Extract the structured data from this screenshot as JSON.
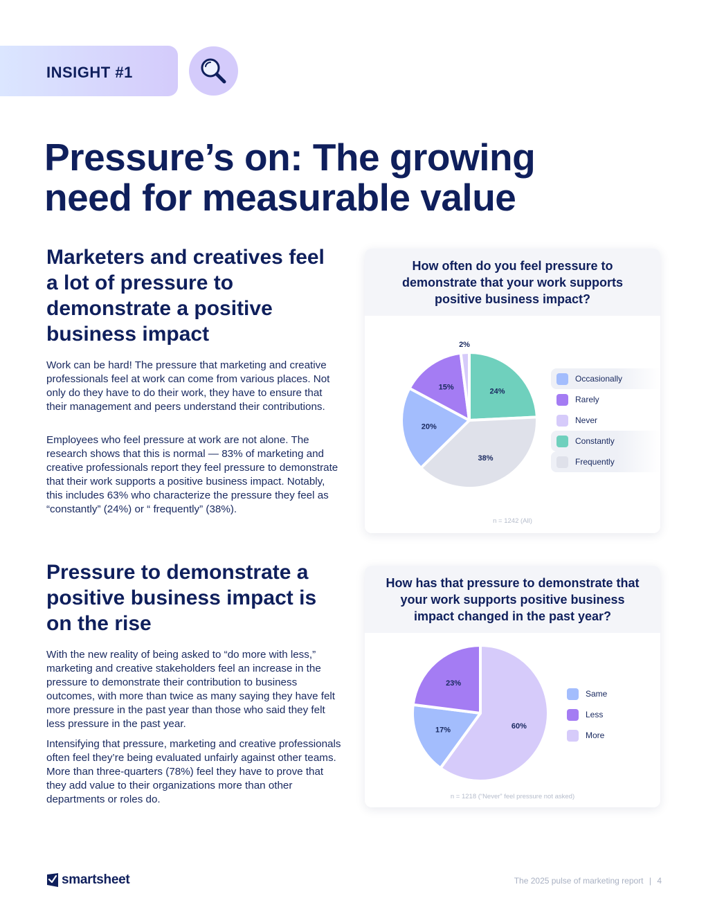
{
  "header": {
    "insight_label": "INSIGHT #1",
    "icon": "magnifier-icon"
  },
  "title": "Pressure’s on: The growing need for measurable value",
  "section1": {
    "heading": "Marketers and creatives feel a lot of pressure to demonstrate a positive business impact",
    "para1": "Work can be hard! The pressure that marketing and creative professionals feel at work can come from various places. Not only do they have to do their work, they have to ensure that their management and peers understand their contributions.",
    "para2": "Employees who feel pressure at work are not alone. The research shows that this is normal — 83% of marketing and creative professionals report they feel pressure to demonstrate that their work supports a positive business impact. Notably, this includes 63% who characterize the pressure they feel as “constantly” (24%) or “ frequently” (38%)."
  },
  "section2": {
    "heading": "Pressure to demonstrate a positive business impact is on the rise",
    "para1": "With the new reality of being asked to “do more with less,” marketing and creative stakeholders feel an increase in the pressure to demonstrate their contribution to business outcomes, with more than twice as many saying they have felt more pressure in the past year than those who said they felt less pressure in the past year.",
    "para2": "Intensifying that pressure, marketing and creative professionals often feel they’re being evaluated unfairly against other teams. More than three-quarters (78%) feel they have to prove that they add value to their organizations more than other departments or roles do."
  },
  "chart_data": [
    {
      "type": "pie",
      "title": "How often do you feel pressure to demonstrate that your work supports positive business impact?",
      "note": "n = 1242 (All)",
      "legend_position": "right",
      "legend": [
        "Occasionally",
        "Rarely",
        "Never",
        "Constantly",
        "Frequently"
      ],
      "slices": [
        {
          "label": "Constantly",
          "value": 24,
          "display": "24%",
          "color": "#6fd0bd"
        },
        {
          "label": "Frequently",
          "value": 38,
          "display": "38%",
          "color": "#dfe1ea"
        },
        {
          "label": "Occasionally",
          "value": 20,
          "display": "20%",
          "color": "#a3bdfd"
        },
        {
          "label": "Rarely",
          "value": 15,
          "display": "15%",
          "color": "#a47cf3"
        },
        {
          "label": "Never",
          "value": 2,
          "display": "2%",
          "color": "#d6cbfa"
        }
      ]
    },
    {
      "type": "pie",
      "title": "How has that pressure to demonstrate that your work supports positive business impact changed in the past year?",
      "note": "n = 1218 (“Never” feel pressure not asked)",
      "legend_position": "right",
      "legend": [
        "Same",
        "Less",
        "More"
      ],
      "slices": [
        {
          "label": "More",
          "value": 60,
          "display": "60%",
          "color": "#d6cbfa"
        },
        {
          "label": "Same",
          "value": 17,
          "display": "17%",
          "color": "#a3bdfd"
        },
        {
          "label": "Less",
          "value": 23,
          "display": "23%",
          "color": "#a47cf3"
        }
      ]
    }
  ],
  "footer": {
    "logo_text": "smartsheet",
    "report_text": "The 2025 pulse of marketing report",
    "separator": "|",
    "page_number": "4"
  }
}
